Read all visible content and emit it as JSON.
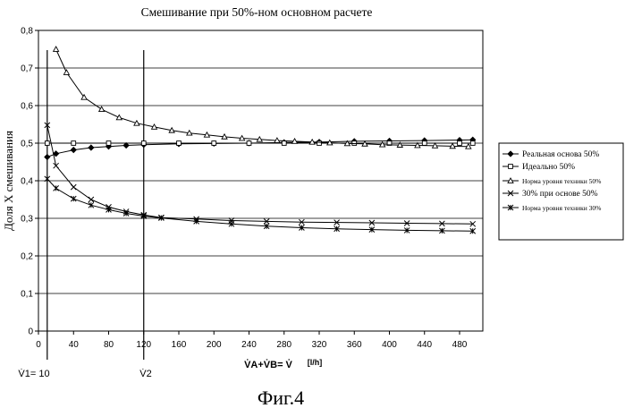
{
  "chart_data": {
    "type": "line",
    "title": "Смешивание при 50%-ном основном расчете",
    "ylabel": "Доля X смешивания",
    "xlabel": "V̇A+V̇B= V̇",
    "xlabel_unit": "[l/h]",
    "x_ticks": [
      0,
      40,
      80,
      120,
      160,
      200,
      240,
      280,
      320,
      360,
      400,
      440,
      480
    ],
    "y_ticks": [
      "0",
      "0,1",
      "0,2",
      "0,3",
      "0,4",
      "0,5",
      "0,6",
      "0,7",
      "0,8"
    ],
    "xlim": [
      0,
      500
    ],
    "ylim": [
      0,
      0.8
    ],
    "grid": "horizontal",
    "legend_position": "right",
    "vertical_markers": [
      {
        "x": 10,
        "label": "V̇1= 10"
      },
      {
        "x": 120,
        "label": "V̇2"
      }
    ],
    "figure_caption": "Фиг.4",
    "series": [
      {
        "name": "Реальная основа 50%",
        "marker": "diamond",
        "x": [
          10,
          20,
          40,
          60,
          80,
          100,
          120,
          160,
          200,
          240,
          280,
          320,
          360,
          400,
          440,
          480,
          495
        ],
        "values": [
          0.463,
          0.472,
          0.482,
          0.488,
          0.491,
          0.494,
          0.496,
          0.498,
          0.499,
          0.5,
          0.502,
          0.503,
          0.505,
          0.506,
          0.507,
          0.508,
          0.509
        ]
      },
      {
        "name": "Идеально 50%",
        "marker": "square",
        "x": [
          10,
          40,
          80,
          120,
          160,
          200,
          240,
          280,
          320,
          360,
          400,
          440,
          480,
          495
        ],
        "values": [
          0.5,
          0.5,
          0.5,
          0.5,
          0.5,
          0.5,
          0.5,
          0.5,
          0.5,
          0.5,
          0.5,
          0.5,
          0.5,
          0.5
        ]
      },
      {
        "name": "Норма уровня техники 50%",
        "marker": "triangle",
        "x": [
          20,
          32,
          52,
          72,
          92,
          112,
          132,
          152,
          172,
          192,
          212,
          232,
          252,
          272,
          292,
          312,
          332,
          352,
          372,
          392,
          412,
          432,
          452,
          472,
          490
        ],
        "values": [
          0.75,
          0.688,
          0.622,
          0.59,
          0.568,
          0.553,
          0.543,
          0.534,
          0.527,
          0.522,
          0.517,
          0.513,
          0.51,
          0.507,
          0.505,
          0.503,
          0.501,
          0.499,
          0.498,
          0.496,
          0.495,
          0.494,
          0.493,
          0.492,
          0.491
        ]
      },
      {
        "name": "30% при основе 50%",
        "marker": "x",
        "x": [
          10,
          20,
          40,
          60,
          80,
          100,
          120,
          140,
          180,
          220,
          260,
          300,
          340,
          380,
          420,
          460,
          495
        ],
        "values": [
          0.548,
          0.44,
          0.383,
          0.35,
          0.33,
          0.318,
          0.309,
          0.302,
          0.298,
          0.294,
          0.292,
          0.29,
          0.289,
          0.288,
          0.287,
          0.286,
          0.285
        ]
      },
      {
        "name": "Норма уровня техники 30%",
        "marker": "star",
        "x": [
          10,
          20,
          40,
          60,
          80,
          100,
          120,
          140,
          180,
          220,
          260,
          300,
          340,
          380,
          420,
          460,
          495
        ],
        "values": [
          0.405,
          0.38,
          0.352,
          0.335,
          0.323,
          0.313,
          0.306,
          0.301,
          0.292,
          0.285,
          0.279,
          0.275,
          0.272,
          0.27,
          0.268,
          0.267,
          0.266
        ]
      }
    ]
  }
}
